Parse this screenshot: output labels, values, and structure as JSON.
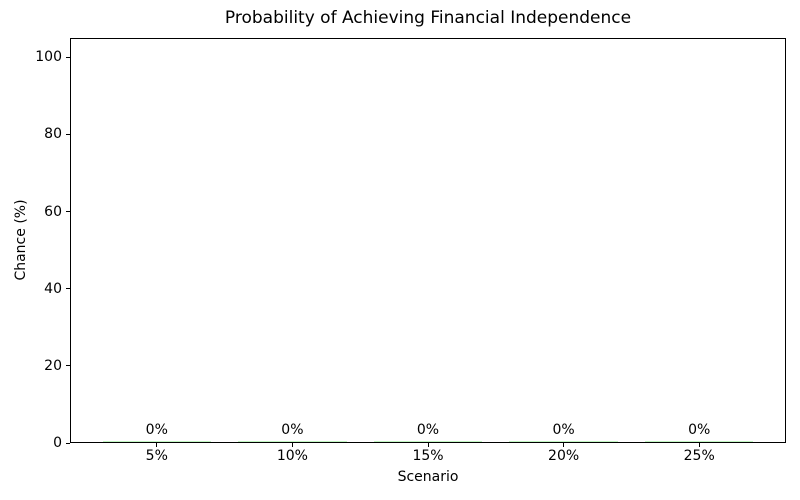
{
  "chart_data": {
    "type": "bar",
    "title": "Probability of Achieving Financial Independence",
    "xlabel": "Scenario",
    "ylabel": "Chance (%)",
    "categories": [
      "5%",
      "10%",
      "15%",
      "20%",
      "25%"
    ],
    "values": [
      0,
      0,
      0,
      0,
      0
    ],
    "bar_labels": [
      "0%",
      "0%",
      "0%",
      "0%",
      "0%"
    ],
    "yticks": [
      0,
      20,
      40,
      60,
      80,
      100
    ],
    "ylim": [
      0,
      105
    ],
    "bar_width_fraction": 0.8,
    "bar_color": "#90ee90",
    "grid": false,
    "legend": "none",
    "colors": {
      "background": "#ffffff",
      "text": "#000000",
      "spine": "#000000"
    }
  }
}
